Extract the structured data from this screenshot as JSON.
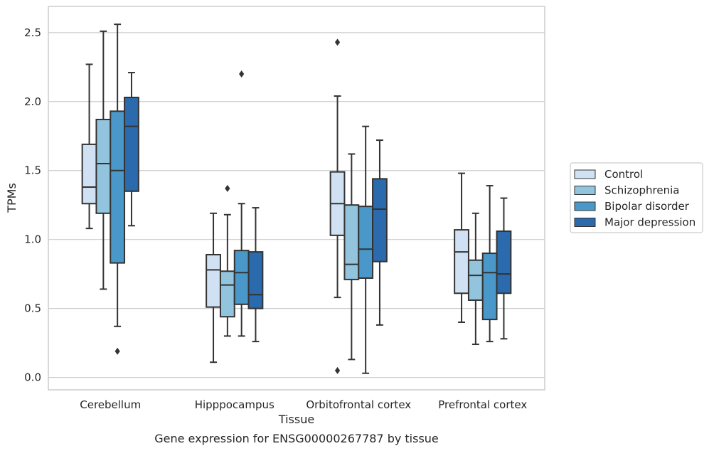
{
  "chart_data": {
    "type": "box",
    "caption": "Gene expression for ENSG00000267787 by tissue",
    "xlabel": "Tissue",
    "ylabel": "TPMs",
    "ylim": [
      -0.09,
      2.69
    ],
    "yticks": [
      0.0,
      0.5,
      1.0,
      1.5,
      2.0,
      2.5
    ],
    "ytick_labels": [
      "0.0",
      "0.5",
      "1.0",
      "1.5",
      "2.0",
      "2.5"
    ],
    "grid": "horizontal",
    "legend_position": "right",
    "categories": [
      "Cerebellum",
      "Hipppocampus",
      "Orbitofrontal cortex",
      "Prefrontal cortex"
    ],
    "series": [
      {
        "name": "Control",
        "color": "#cfe1f2",
        "boxes": [
          {
            "whisker_low": 1.08,
            "q1": 1.26,
            "median": 1.38,
            "q3": 1.69,
            "whisker_high": 2.27,
            "outliers": []
          },
          {
            "whisker_low": 0.11,
            "q1": 0.51,
            "median": 0.78,
            "q3": 0.89,
            "whisker_high": 1.19,
            "outliers": []
          },
          {
            "whisker_low": 0.58,
            "q1": 1.03,
            "median": 1.26,
            "q3": 1.49,
            "whisker_high": 2.04,
            "outliers": [
              2.43,
              0.05
            ]
          },
          {
            "whisker_low": 0.4,
            "q1": 0.61,
            "median": 0.91,
            "q3": 1.07,
            "whisker_high": 1.48,
            "outliers": []
          }
        ]
      },
      {
        "name": "Schizophrenia",
        "color": "#93c4de",
        "boxes": [
          {
            "whisker_low": 0.64,
            "q1": 1.19,
            "median": 1.55,
            "q3": 1.87,
            "whisker_high": 2.51,
            "outliers": []
          },
          {
            "whisker_low": 0.3,
            "q1": 0.44,
            "median": 0.67,
            "q3": 0.77,
            "whisker_high": 1.18,
            "outliers": [
              1.37
            ]
          },
          {
            "whisker_low": 0.13,
            "q1": 0.71,
            "median": 0.82,
            "q3": 1.25,
            "whisker_high": 1.62,
            "outliers": []
          },
          {
            "whisker_low": 0.24,
            "q1": 0.56,
            "median": 0.74,
            "q3": 0.85,
            "whisker_high": 1.19,
            "outliers": []
          }
        ]
      },
      {
        "name": "Bipolar disorder",
        "color": "#4a98c9",
        "boxes": [
          {
            "whisker_low": 0.37,
            "q1": 0.83,
            "median": 1.5,
            "q3": 1.93,
            "whisker_high": 2.56,
            "outliers": [
              0.19
            ]
          },
          {
            "whisker_low": 0.3,
            "q1": 0.53,
            "median": 0.76,
            "q3": 0.92,
            "whisker_high": 1.26,
            "outliers": [
              2.2
            ]
          },
          {
            "whisker_low": 0.03,
            "q1": 0.72,
            "median": 0.93,
            "q3": 1.24,
            "whisker_high": 1.82,
            "outliers": []
          },
          {
            "whisker_low": 0.26,
            "q1": 0.42,
            "median": 0.76,
            "q3": 0.9,
            "whisker_high": 1.39,
            "outliers": []
          }
        ]
      },
      {
        "name": "Major depression",
        "color": "#2b6aad",
        "boxes": [
          {
            "whisker_low": 1.1,
            "q1": 1.35,
            "median": 1.82,
            "q3": 2.03,
            "whisker_high": 2.21,
            "outliers": []
          },
          {
            "whisker_low": 0.26,
            "q1": 0.5,
            "median": 0.6,
            "q3": 0.91,
            "whisker_high": 1.23,
            "outliers": []
          },
          {
            "whisker_low": 0.38,
            "q1": 0.84,
            "median": 1.22,
            "q3": 1.44,
            "whisker_high": 1.72,
            "outliers": []
          },
          {
            "whisker_low": 0.28,
            "q1": 0.61,
            "median": 0.75,
            "q3": 1.06,
            "whisker_high": 1.3,
            "outliers": []
          }
        ]
      }
    ],
    "colors": {
      "grid": "#cccccc",
      "frame": "#cccccc",
      "box_edge": "#333333",
      "text": "#262626"
    }
  }
}
